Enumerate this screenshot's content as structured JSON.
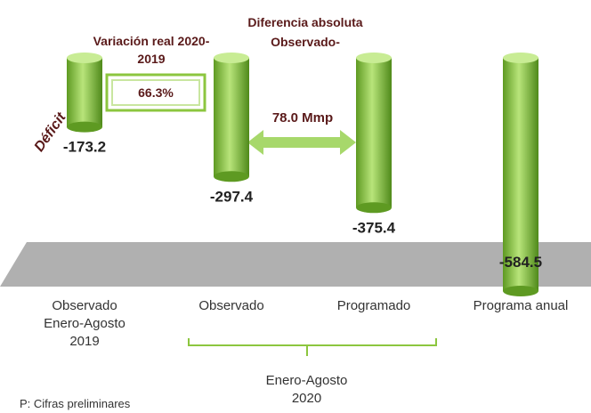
{
  "chart_data": {
    "type": "bar",
    "categories": [
      "Observado Enero-Agosto 2019",
      "Observado",
      "Programado",
      "Programa anual"
    ],
    "values": [
      -173.2,
      -297.4,
      -375.4,
      -584.5
    ],
    "color": "#8cc63f",
    "group_label": "Enero-Agosto 2020",
    "annotations": {
      "variation_title": "Variación real 2020-2019",
      "variation_value": "66.3%",
      "difference_title": "Diferencia absoluta Observado-",
      "difference_value": "78.0 Mmp",
      "deficit": "Déficit",
      "note": "P: Cifras preliminares"
    }
  }
}
